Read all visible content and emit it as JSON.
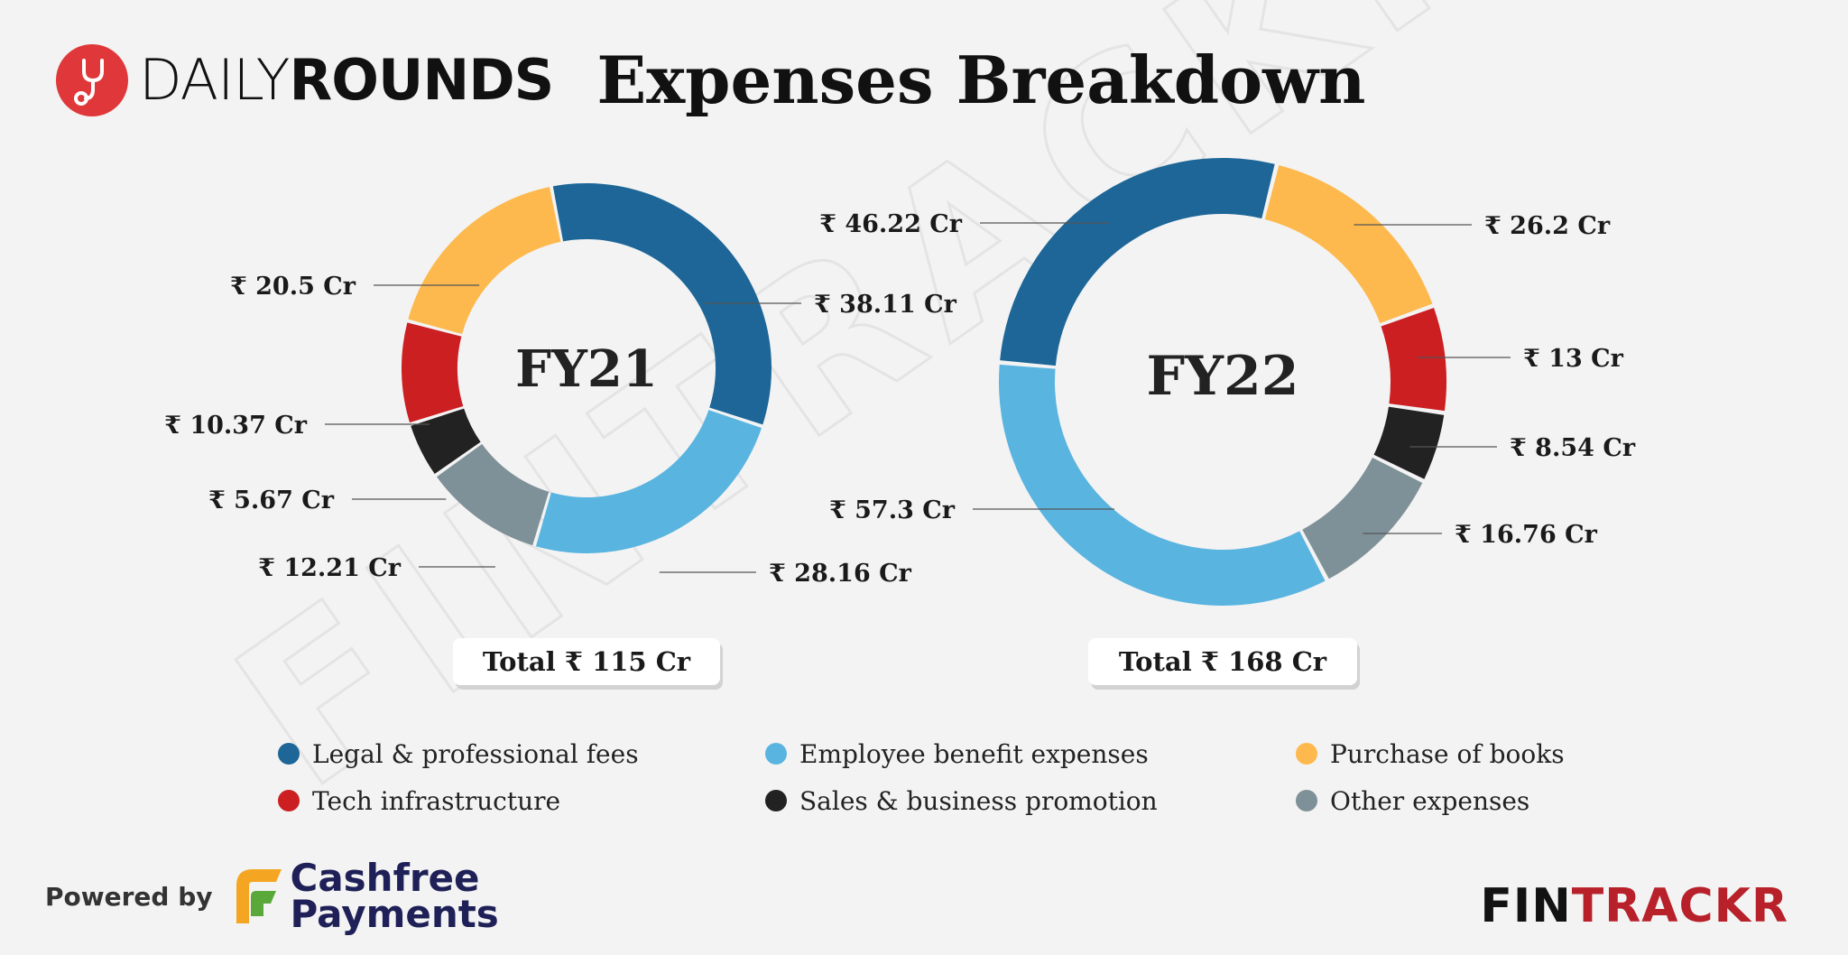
{
  "brand": {
    "name_light": "DAILY",
    "name_bold": "ROUNDS",
    "logo_color": "#e0383a"
  },
  "title": "Expenses Breakdown",
  "watermark_text": "FINTRACKR",
  "colors": {
    "legal": "#1d6697",
    "employee": "#5ab4e0",
    "books": "#fdb94d",
    "tech": "#cc1f22",
    "sales": "#222222",
    "other": "#7f9198"
  },
  "chart_data": [
    {
      "type": "donut",
      "center_label": "FY21",
      "total_label": "Total ₹ 115 Cr",
      "unit": "₹ Cr",
      "slices": [
        {
          "key": "legal",
          "value": 38.11,
          "label": "₹ 38.11 Cr"
        },
        {
          "key": "employee",
          "value": 28.16,
          "label": "₹ 28.16 Cr"
        },
        {
          "key": "other",
          "value": 12.21,
          "label": "₹ 12.21 Cr"
        },
        {
          "key": "sales",
          "value": 5.67,
          "label": "₹ 5.67 Cr"
        },
        {
          "key": "tech",
          "value": 10.37,
          "label": "₹ 10.37 Cr"
        },
        {
          "key": "books",
          "value": 20.5,
          "label": "₹ 20.5 Cr"
        }
      ]
    },
    {
      "type": "donut",
      "center_label": "FY22",
      "total_label": "Total ₹ 168 Cr",
      "unit": "₹ Cr",
      "slices": [
        {
          "key": "books",
          "value": 26.2,
          "label": "₹ 26.2 Cr"
        },
        {
          "key": "tech",
          "value": 13,
          "label": "₹ 13 Cr"
        },
        {
          "key": "sales",
          "value": 8.54,
          "label": "₹ 8.54 Cr"
        },
        {
          "key": "other",
          "value": 16.76,
          "label": "₹ 16.76 Cr"
        },
        {
          "key": "employee",
          "value": 57.3,
          "label": "₹ 57.3 Cr"
        },
        {
          "key": "legal",
          "value": 46.22,
          "label": "₹ 46.22 Cr"
        }
      ]
    }
  ],
  "legend": [
    {
      "key": "legal",
      "label": "Legal & professional fees"
    },
    {
      "key": "employee",
      "label": "Employee benefit expenses"
    },
    {
      "key": "books",
      "label": "Purchase of books"
    },
    {
      "key": "tech",
      "label": "Tech infrastructure"
    },
    {
      "key": "sales",
      "label": "Sales & business promotion"
    },
    {
      "key": "other",
      "label": "Other expenses"
    }
  ],
  "footer": {
    "powered_by": "Powered by",
    "cashfree_line1": "Cashfree",
    "cashfree_line2": "Payments",
    "fintrackr_fin": "FIN",
    "fintrackr_trackr": "TRACKR"
  }
}
